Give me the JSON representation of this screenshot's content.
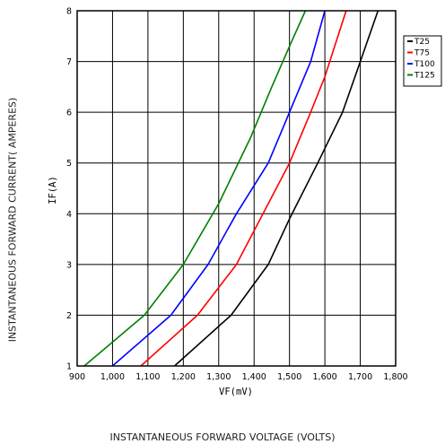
{
  "page": {
    "outer_ylabel": "INSTANTANEOUS FORWARD CURRENT( AMPERES)",
    "outer_xlabel": "INSTANTANEOUS FORWARD VOLTAGE (VOLTS)"
  },
  "chart_data": {
    "type": "line",
    "title": "",
    "xlabel": "VF(mV)",
    "ylabel": "IF(A)",
    "xlim": [
      900,
      1800
    ],
    "ylim": [
      1,
      8
    ],
    "xticks": [
      "900",
      "1,000",
      "1,100",
      "1,200",
      "1,300",
      "1,400",
      "1,500",
      "1,600",
      "1,700",
      "1,800"
    ],
    "yticks": [
      "1",
      "2",
      "3",
      "4",
      "5",
      "6",
      "7",
      "8"
    ],
    "grid": true,
    "legend": "top-right",
    "series": [
      {
        "name": "T25",
        "color": "#000000",
        "x": [
          1175,
          1335,
          1440,
          1500,
          1580,
          1650,
          1700,
          1750
        ],
        "y": [
          1,
          2,
          3,
          3.9,
          5,
          6,
          7,
          8
        ]
      },
      {
        "name": "T75",
        "color": "#ff0000",
        "x": [
          1080,
          1240,
          1350,
          1410,
          1500,
          1560,
          1600,
          1660
        ],
        "y": [
          1,
          2,
          3,
          3.8,
          5,
          6,
          6.7,
          8
        ]
      },
      {
        "name": "T100",
        "color": "#0000ff",
        "x": [
          1000,
          1165,
          1270,
          1350,
          1440,
          1500,
          1560,
          1600
        ],
        "y": [
          1,
          2,
          3,
          4,
          5,
          6,
          7,
          8
        ]
      },
      {
        "name": "T125",
        "color": "#008000",
        "x": [
          920,
          1090,
          1200,
          1300,
          1390,
          1450,
          1500,
          1545
        ],
        "y": [
          1,
          2,
          3,
          4.2,
          5.5,
          6.5,
          7.3,
          8
        ]
      }
    ]
  }
}
